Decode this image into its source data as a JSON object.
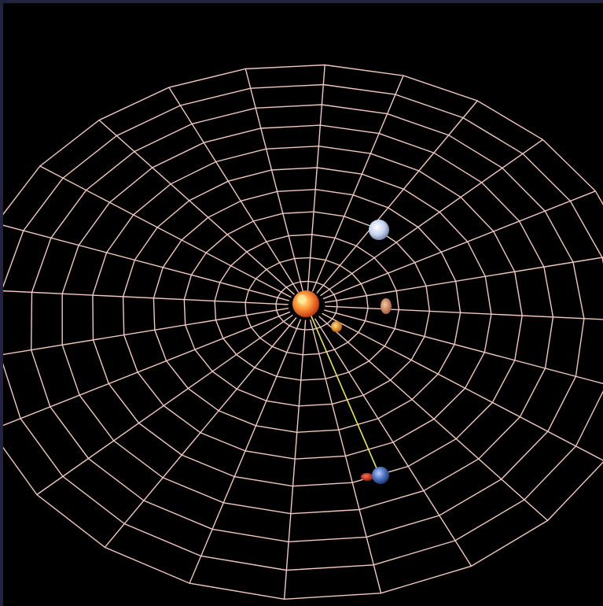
{
  "scene": {
    "background_color": "#000000",
    "frame_color": "#23233f",
    "grid_color": "#f2c8c0",
    "orbit_line_color": "#e8e84a",
    "grid": {
      "rings": 11,
      "spokes": 24
    },
    "bodies": [
      {
        "name": "sun",
        "color": "#ff7a2a",
        "highlight": "#ffd070",
        "kind": "star"
      },
      {
        "name": "small-orange-planet",
        "color": "#e07a20",
        "highlight": "#ffcf60",
        "kind": "planet"
      },
      {
        "name": "tan-planet",
        "color": "#c8865a",
        "highlight": "#f0b890",
        "kind": "planet"
      },
      {
        "name": "white-planet",
        "color": "#b8c8e8",
        "highlight": "#ffffff",
        "kind": "planet"
      },
      {
        "name": "blue-planet",
        "color": "#4b6fb8",
        "highlight": "#9ab8ff",
        "kind": "planet"
      },
      {
        "name": "red-moon",
        "color": "#c03018",
        "highlight": "#ff6040",
        "kind": "moon"
      }
    ]
  }
}
